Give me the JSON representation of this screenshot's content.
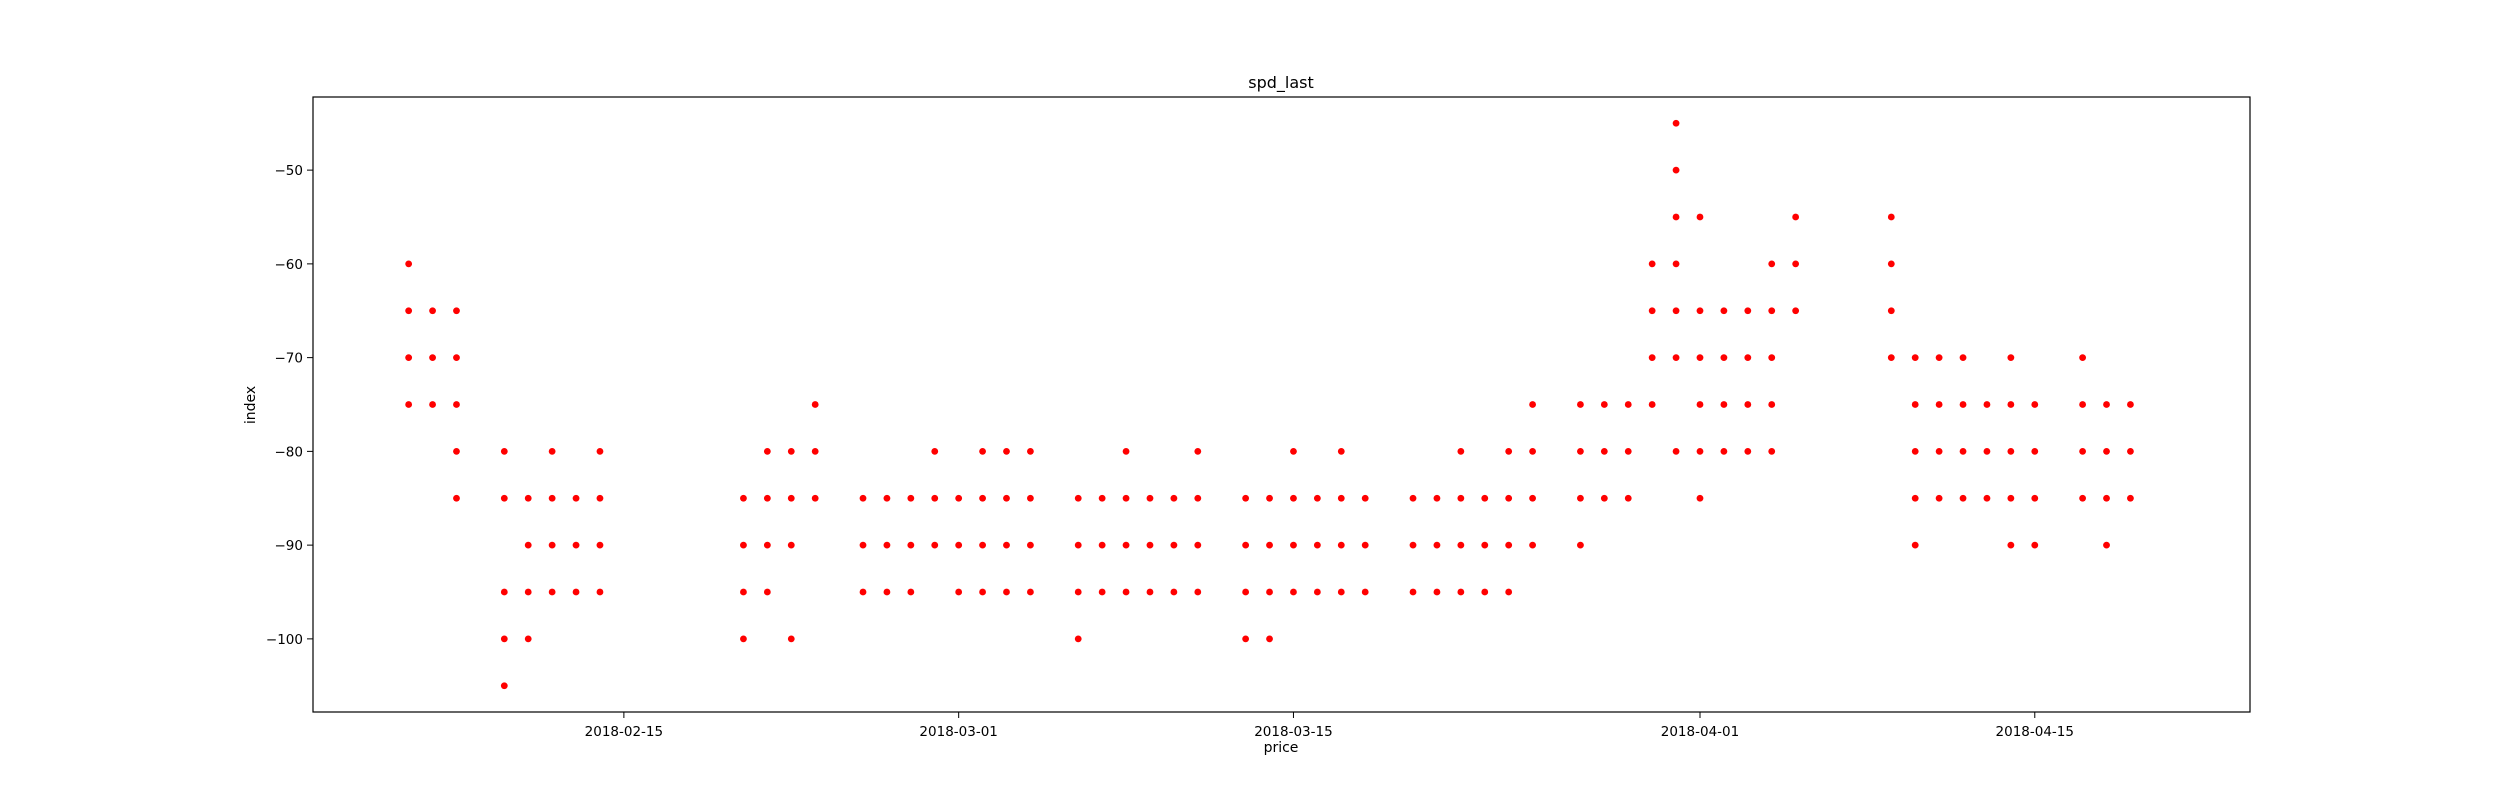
{
  "chart_data": {
    "type": "scatter",
    "title": "spd_last",
    "xlabel": "price",
    "ylabel": "index",
    "x_type": "date",
    "xlim": [
      "2018-02-02",
      "2018-04-24"
    ],
    "ylim": [
      -107.8,
      -42.2
    ],
    "x_ticks": [
      "2018-02-15",
      "2018-03-01",
      "2018-03-15",
      "2018-04-01",
      "2018-04-15"
    ],
    "y_ticks": [
      -100,
      -90,
      -80,
      -70,
      -60,
      -50
    ],
    "grid": false,
    "legend": "none",
    "marker_color": "#ff0000",
    "series": [
      {
        "points": [
          [
            "2018-02-06",
            -60
          ],
          [
            "2018-02-06",
            -65
          ],
          [
            "2018-02-06",
            -70
          ],
          [
            "2018-02-06",
            -75
          ],
          [
            "2018-02-07",
            -65
          ],
          [
            "2018-02-07",
            -70
          ],
          [
            "2018-02-07",
            -75
          ],
          [
            "2018-02-08",
            -65
          ],
          [
            "2018-02-08",
            -70
          ],
          [
            "2018-02-08",
            -75
          ],
          [
            "2018-02-08",
            -80
          ],
          [
            "2018-02-08",
            -85
          ],
          [
            "2018-02-10",
            -80
          ],
          [
            "2018-02-10",
            -85
          ],
          [
            "2018-02-10",
            -95
          ],
          [
            "2018-02-10",
            -100
          ],
          [
            "2018-02-10",
            -105
          ],
          [
            "2018-02-11",
            -85
          ],
          [
            "2018-02-11",
            -90
          ],
          [
            "2018-02-11",
            -95
          ],
          [
            "2018-02-11",
            -100
          ],
          [
            "2018-02-12",
            -80
          ],
          [
            "2018-02-12",
            -85
          ],
          [
            "2018-02-12",
            -90
          ],
          [
            "2018-02-12",
            -95
          ],
          [
            "2018-02-13",
            -85
          ],
          [
            "2018-02-13",
            -90
          ],
          [
            "2018-02-13",
            -95
          ],
          [
            "2018-02-14",
            -80
          ],
          [
            "2018-02-14",
            -85
          ],
          [
            "2018-02-14",
            -90
          ],
          [
            "2018-02-14",
            -95
          ],
          [
            "2018-02-20",
            -85
          ],
          [
            "2018-02-20",
            -90
          ],
          [
            "2018-02-20",
            -95
          ],
          [
            "2018-02-20",
            -100
          ],
          [
            "2018-02-21",
            -80
          ],
          [
            "2018-02-21",
            -85
          ],
          [
            "2018-02-21",
            -90
          ],
          [
            "2018-02-21",
            -95
          ],
          [
            "2018-02-22",
            -80
          ],
          [
            "2018-02-22",
            -85
          ],
          [
            "2018-02-22",
            -90
          ],
          [
            "2018-02-22",
            -100
          ],
          [
            "2018-02-23",
            -75
          ],
          [
            "2018-02-23",
            -80
          ],
          [
            "2018-02-23",
            -85
          ],
          [
            "2018-02-25",
            -85
          ],
          [
            "2018-02-25",
            -90
          ],
          [
            "2018-02-25",
            -95
          ],
          [
            "2018-02-26",
            -85
          ],
          [
            "2018-02-26",
            -90
          ],
          [
            "2018-02-26",
            -95
          ],
          [
            "2018-02-27",
            -85
          ],
          [
            "2018-02-27",
            -90
          ],
          [
            "2018-02-27",
            -95
          ],
          [
            "2018-02-28",
            -80
          ],
          [
            "2018-02-28",
            -85
          ],
          [
            "2018-02-28",
            -90
          ],
          [
            "2018-03-01",
            -85
          ],
          [
            "2018-03-01",
            -90
          ],
          [
            "2018-03-01",
            -95
          ],
          [
            "2018-03-02",
            -80
          ],
          [
            "2018-03-02",
            -85
          ],
          [
            "2018-03-02",
            -90
          ],
          [
            "2018-03-02",
            -95
          ],
          [
            "2018-03-03",
            -80
          ],
          [
            "2018-03-03",
            -85
          ],
          [
            "2018-03-03",
            -90
          ],
          [
            "2018-03-03",
            -95
          ],
          [
            "2018-03-04",
            -80
          ],
          [
            "2018-03-04",
            -85
          ],
          [
            "2018-03-04",
            -90
          ],
          [
            "2018-03-04",
            -95
          ],
          [
            "2018-03-06",
            -85
          ],
          [
            "2018-03-06",
            -90
          ],
          [
            "2018-03-06",
            -95
          ],
          [
            "2018-03-06",
            -100
          ],
          [
            "2018-03-07",
            -85
          ],
          [
            "2018-03-07",
            -90
          ],
          [
            "2018-03-07",
            -95
          ],
          [
            "2018-03-08",
            -80
          ],
          [
            "2018-03-08",
            -85
          ],
          [
            "2018-03-08",
            -90
          ],
          [
            "2018-03-08",
            -95
          ],
          [
            "2018-03-09",
            -85
          ],
          [
            "2018-03-09",
            -90
          ],
          [
            "2018-03-09",
            -95
          ],
          [
            "2018-03-10",
            -85
          ],
          [
            "2018-03-10",
            -90
          ],
          [
            "2018-03-10",
            -95
          ],
          [
            "2018-03-11",
            -80
          ],
          [
            "2018-03-11",
            -85
          ],
          [
            "2018-03-11",
            -90
          ],
          [
            "2018-03-11",
            -95
          ],
          [
            "2018-03-13",
            -85
          ],
          [
            "2018-03-13",
            -90
          ],
          [
            "2018-03-13",
            -95
          ],
          [
            "2018-03-13",
            -100
          ],
          [
            "2018-03-14",
            -85
          ],
          [
            "2018-03-14",
            -90
          ],
          [
            "2018-03-14",
            -95
          ],
          [
            "2018-03-14",
            -100
          ],
          [
            "2018-03-15",
            -80
          ],
          [
            "2018-03-15",
            -85
          ],
          [
            "2018-03-15",
            -90
          ],
          [
            "2018-03-15",
            -95
          ],
          [
            "2018-03-16",
            -85
          ],
          [
            "2018-03-16",
            -90
          ],
          [
            "2018-03-16",
            -95
          ],
          [
            "2018-03-17",
            -80
          ],
          [
            "2018-03-17",
            -85
          ],
          [
            "2018-03-17",
            -90
          ],
          [
            "2018-03-17",
            -95
          ],
          [
            "2018-03-18",
            -85
          ],
          [
            "2018-03-18",
            -90
          ],
          [
            "2018-03-18",
            -95
          ],
          [
            "2018-03-20",
            -85
          ],
          [
            "2018-03-20",
            -90
          ],
          [
            "2018-03-20",
            -95
          ],
          [
            "2018-03-21",
            -85
          ],
          [
            "2018-03-21",
            -90
          ],
          [
            "2018-03-21",
            -95
          ],
          [
            "2018-03-22",
            -80
          ],
          [
            "2018-03-22",
            -85
          ],
          [
            "2018-03-22",
            -90
          ],
          [
            "2018-03-22",
            -95
          ],
          [
            "2018-03-23",
            -85
          ],
          [
            "2018-03-23",
            -90
          ],
          [
            "2018-03-23",
            -95
          ],
          [
            "2018-03-24",
            -80
          ],
          [
            "2018-03-24",
            -85
          ],
          [
            "2018-03-24",
            -90
          ],
          [
            "2018-03-24",
            -95
          ],
          [
            "2018-03-25",
            -75
          ],
          [
            "2018-03-25",
            -80
          ],
          [
            "2018-03-25",
            -85
          ],
          [
            "2018-03-25",
            -90
          ],
          [
            "2018-03-27",
            -75
          ],
          [
            "2018-03-27",
            -80
          ],
          [
            "2018-03-27",
            -85
          ],
          [
            "2018-03-27",
            -90
          ],
          [
            "2018-03-28",
            -75
          ],
          [
            "2018-03-28",
            -80
          ],
          [
            "2018-03-28",
            -85
          ],
          [
            "2018-03-29",
            -75
          ],
          [
            "2018-03-29",
            -80
          ],
          [
            "2018-03-29",
            -85
          ],
          [
            "2018-03-30",
            -60
          ],
          [
            "2018-03-30",
            -65
          ],
          [
            "2018-03-30",
            -70
          ],
          [
            "2018-03-30",
            -75
          ],
          [
            "2018-03-31",
            -45
          ],
          [
            "2018-03-31",
            -50
          ],
          [
            "2018-03-31",
            -55
          ],
          [
            "2018-03-31",
            -60
          ],
          [
            "2018-03-31",
            -65
          ],
          [
            "2018-03-31",
            -70
          ],
          [
            "2018-03-31",
            -80
          ],
          [
            "2018-04-01",
            -55
          ],
          [
            "2018-04-01",
            -65
          ],
          [
            "2018-04-01",
            -70
          ],
          [
            "2018-04-01",
            -75
          ],
          [
            "2018-04-01",
            -80
          ],
          [
            "2018-04-01",
            -85
          ],
          [
            "2018-04-02",
            -65
          ],
          [
            "2018-04-02",
            -70
          ],
          [
            "2018-04-02",
            -75
          ],
          [
            "2018-04-02",
            -80
          ],
          [
            "2018-04-03",
            -65
          ],
          [
            "2018-04-03",
            -70
          ],
          [
            "2018-04-03",
            -75
          ],
          [
            "2018-04-03",
            -80
          ],
          [
            "2018-04-04",
            -60
          ],
          [
            "2018-04-04",
            -65
          ],
          [
            "2018-04-04",
            -70
          ],
          [
            "2018-04-04",
            -75
          ],
          [
            "2018-04-04",
            -80
          ],
          [
            "2018-04-05",
            -55
          ],
          [
            "2018-04-05",
            -60
          ],
          [
            "2018-04-05",
            -65
          ],
          [
            "2018-04-09",
            -55
          ],
          [
            "2018-04-09",
            -60
          ],
          [
            "2018-04-09",
            -65
          ],
          [
            "2018-04-09",
            -70
          ],
          [
            "2018-04-10",
            -70
          ],
          [
            "2018-04-10",
            -75
          ],
          [
            "2018-04-10",
            -80
          ],
          [
            "2018-04-10",
            -85
          ],
          [
            "2018-04-10",
            -90
          ],
          [
            "2018-04-11",
            -70
          ],
          [
            "2018-04-11",
            -75
          ],
          [
            "2018-04-11",
            -80
          ],
          [
            "2018-04-11",
            -85
          ],
          [
            "2018-04-12",
            -70
          ],
          [
            "2018-04-12",
            -75
          ],
          [
            "2018-04-12",
            -80
          ],
          [
            "2018-04-12",
            -85
          ],
          [
            "2018-04-13",
            -75
          ],
          [
            "2018-04-13",
            -80
          ],
          [
            "2018-04-13",
            -85
          ],
          [
            "2018-04-14",
            -70
          ],
          [
            "2018-04-14",
            -75
          ],
          [
            "2018-04-14",
            -80
          ],
          [
            "2018-04-14",
            -85
          ],
          [
            "2018-04-14",
            -90
          ],
          [
            "2018-04-15",
            -75
          ],
          [
            "2018-04-15",
            -80
          ],
          [
            "2018-04-15",
            -85
          ],
          [
            "2018-04-15",
            -90
          ],
          [
            "2018-04-17",
            -70
          ],
          [
            "2018-04-17",
            -75
          ],
          [
            "2018-04-17",
            -80
          ],
          [
            "2018-04-17",
            -85
          ],
          [
            "2018-04-18",
            -75
          ],
          [
            "2018-04-18",
            -80
          ],
          [
            "2018-04-18",
            -85
          ],
          [
            "2018-04-18",
            -90
          ],
          [
            "2018-04-19",
            -75
          ],
          [
            "2018-04-19",
            -80
          ],
          [
            "2018-04-19",
            -85
          ]
        ]
      }
    ]
  }
}
